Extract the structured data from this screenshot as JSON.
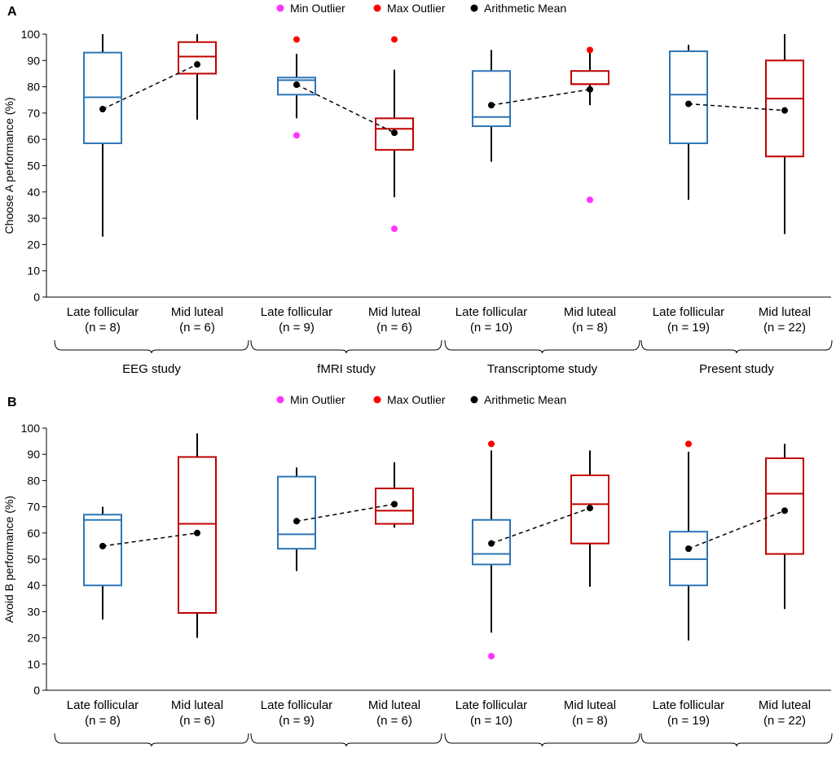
{
  "legend": [
    {
      "label": "Min Outlier",
      "color": "#ff33ff"
    },
    {
      "label": "Max Outlier",
      "color": "#ff0000"
    },
    {
      "label": "Arithmetic Mean",
      "color": "#000000"
    }
  ],
  "colors": {
    "late": "#2e75b6",
    "mid": "#c00000",
    "whisker": "#000000",
    "axis": "#000000"
  },
  "y_ticks": [
    "0",
    "10",
    "20",
    "30",
    "40",
    "50",
    "60",
    "70",
    "80",
    "90",
    "100"
  ],
  "categories": [
    {
      "name": "Late follicular",
      "n": "(n = 8)"
    },
    {
      "name": "Mid luteal",
      "n": "(n = 6)"
    },
    {
      "name": "Late follicular",
      "n": "(n = 9)"
    },
    {
      "name": "Mid luteal",
      "n": "(n = 6)"
    },
    {
      "name": "Late follicular",
      "n": "(n = 10)"
    },
    {
      "name": "Mid luteal",
      "n": "(n = 8)"
    },
    {
      "name": "Late follicular",
      "n": "(n = 19)"
    },
    {
      "name": "Mid luteal",
      "n": "(n = 22)"
    }
  ],
  "groups": [
    "EEG study",
    "fMRI study",
    "Transcriptome study",
    "Present study"
  ],
  "chart_data": [
    {
      "type": "box",
      "panel_label": "A",
      "ylabel": "Choose A performance (%)",
      "ylim": [
        0,
        100
      ],
      "boxes": [
        {
          "phase": "late",
          "min": 23,
          "q1": 58.5,
          "median": 76,
          "q3": 93,
          "max": 100,
          "mean": 71.5,
          "min_outliers": [],
          "max_outliers": []
        },
        {
          "phase": "mid",
          "min": 67.5,
          "q1": 85,
          "median": 91.5,
          "q3": 97,
          "max": 100,
          "mean": 88.5,
          "min_outliers": [],
          "max_outliers": []
        },
        {
          "phase": "late",
          "min": 68,
          "q1": 77,
          "median": 82.5,
          "q3": 83.5,
          "max": 92.5,
          "mean": 80.8,
          "min_outliers": [
            61.5
          ],
          "max_outliers": [
            98
          ]
        },
        {
          "phase": "mid",
          "min": 38,
          "q1": 56,
          "median": 64,
          "q3": 68,
          "max": 86.5,
          "mean": 62.5,
          "min_outliers": [
            26
          ],
          "max_outliers": [
            98
          ]
        },
        {
          "phase": "late",
          "min": 51.5,
          "q1": 65,
          "median": 68.5,
          "q3": 86,
          "max": 94,
          "mean": 73,
          "min_outliers": [],
          "max_outliers": []
        },
        {
          "phase": "mid",
          "min": 73,
          "q1": 81,
          "median": 81,
          "q3": 86,
          "max": 93,
          "mean": 79,
          "min_outliers": [
            37
          ],
          "max_outliers": [
            94
          ]
        },
        {
          "phase": "late",
          "min": 37,
          "q1": 58.5,
          "median": 77,
          "q3": 93.5,
          "max": 96,
          "mean": 73.5,
          "min_outliers": [],
          "max_outliers": []
        },
        {
          "phase": "mid",
          "min": 24,
          "q1": 53.5,
          "median": 75.5,
          "q3": 90,
          "max": 100,
          "mean": 71,
          "min_outliers": [],
          "max_outliers": []
        }
      ]
    },
    {
      "type": "box",
      "panel_label": "B",
      "ylabel": "Avoid B performance (%)",
      "ylim": [
        0,
        100
      ],
      "boxes": [
        {
          "phase": "late",
          "min": 27,
          "q1": 40,
          "median": 65,
          "q3": 67,
          "max": 70,
          "mean": 55,
          "min_outliers": [],
          "max_outliers": []
        },
        {
          "phase": "mid",
          "min": 20,
          "q1": 29.5,
          "median": 63.5,
          "q3": 89,
          "max": 98,
          "mean": 60,
          "min_outliers": [],
          "max_outliers": []
        },
        {
          "phase": "late",
          "min": 45.5,
          "q1": 54,
          "median": 59.5,
          "q3": 81.5,
          "max": 85,
          "mean": 64.5,
          "min_outliers": [],
          "max_outliers": []
        },
        {
          "phase": "mid",
          "min": 62,
          "q1": 63.5,
          "median": 68.5,
          "q3": 77,
          "max": 87,
          "mean": 71,
          "min_outliers": [],
          "max_outliers": []
        },
        {
          "phase": "late",
          "min": 22,
          "q1": 48,
          "median": 52,
          "q3": 65,
          "max": 91.5,
          "mean": 56,
          "min_outliers": [
            13
          ],
          "max_outliers": [
            94
          ]
        },
        {
          "phase": "mid",
          "min": 39.5,
          "q1": 56,
          "median": 71,
          "q3": 82,
          "max": 91.5,
          "mean": 69.5,
          "min_outliers": [],
          "max_outliers": []
        },
        {
          "phase": "late",
          "min": 19,
          "q1": 40,
          "median": 50,
          "q3": 60.5,
          "max": 91,
          "mean": 54,
          "min_outliers": [],
          "max_outliers": [
            94
          ]
        },
        {
          "phase": "mid",
          "min": 31,
          "q1": 52,
          "median": 75,
          "q3": 88.5,
          "max": 94,
          "mean": 68.5,
          "min_outliers": [],
          "max_outliers": []
        }
      ]
    }
  ]
}
